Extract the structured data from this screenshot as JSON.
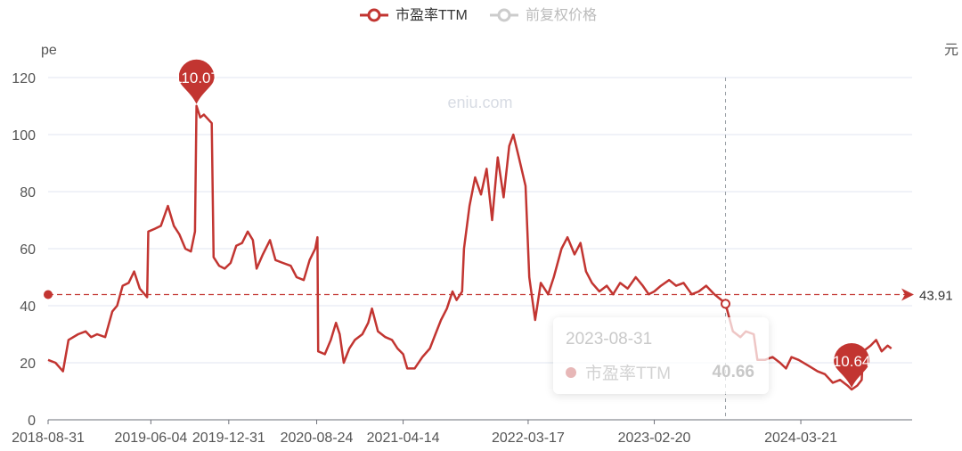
{
  "legend": {
    "pe_label": "市盈率TTM",
    "price_label": "前复权价格"
  },
  "axes": {
    "y_left_unit": "pe",
    "y_right_unit": "元"
  },
  "watermark": "eniu.com",
  "tooltip": {
    "date": "2023-08-31",
    "series": "市盈率TTM",
    "value": "40.66"
  },
  "colors": {
    "pe_series": "#c23531",
    "price_series_inactive": "#cccccc",
    "grid": "#e0e6f1",
    "crosshair": "#9aa0a6"
  },
  "chart_data": {
    "type": "line",
    "x_tick_labels": [
      "2018-08-31",
      "2019-06-04",
      "2019-12-31",
      "2020-08-24",
      "2021-04-14",
      "2022-03-17",
      "2023-02-20",
      "2024-03-21"
    ],
    "y_ticks": [
      0,
      20,
      40,
      60,
      80,
      100,
      120
    ],
    "ylim": [
      0,
      120
    ],
    "xlim": [
      "2018-08-31",
      "2025-01-15"
    ],
    "grid": true,
    "legend_position": "top-center",
    "series": [
      {
        "name": "市盈率TTM",
        "points": [
          [
            "2018-08-31",
            21
          ],
          [
            "2018-09-20",
            20
          ],
          [
            "2018-10-10",
            17
          ],
          [
            "2018-10-25",
            28
          ],
          [
            "2018-11-20",
            30
          ],
          [
            "2018-12-10",
            31
          ],
          [
            "2018-12-25",
            29
          ],
          [
            "2019-01-10",
            30
          ],
          [
            "2019-02-01",
            29
          ],
          [
            "2019-02-20",
            38
          ],
          [
            "2019-03-05",
            40
          ],
          [
            "2019-03-20",
            47
          ],
          [
            "2019-04-05",
            48
          ],
          [
            "2019-04-20",
            52
          ],
          [
            "2019-05-05",
            46
          ],
          [
            "2019-05-25",
            43
          ],
          [
            "2019-05-28",
            66
          ],
          [
            "2019-06-15",
            67
          ],
          [
            "2019-07-01",
            68
          ],
          [
            "2019-07-20",
            75
          ],
          [
            "2019-08-05",
            68
          ],
          [
            "2019-08-20",
            65
          ],
          [
            "2019-09-05",
            60
          ],
          [
            "2019-09-20",
            59
          ],
          [
            "2019-10-01",
            66
          ],
          [
            "2019-10-05",
            110.07
          ],
          [
            "2019-10-15",
            106
          ],
          [
            "2019-10-25",
            107
          ],
          [
            "2019-11-15",
            104
          ],
          [
            "2019-11-20",
            57
          ],
          [
            "2019-12-05",
            54
          ],
          [
            "2019-12-20",
            53
          ],
          [
            "2020-01-05",
            55
          ],
          [
            "2020-01-20",
            61
          ],
          [
            "2020-02-05",
            62
          ],
          [
            "2020-02-20",
            66
          ],
          [
            "2020-03-05",
            63
          ],
          [
            "2020-03-15",
            53
          ],
          [
            "2020-04-01",
            58
          ],
          [
            "2020-04-20",
            63
          ],
          [
            "2020-05-05",
            56
          ],
          [
            "2020-05-25",
            55
          ],
          [
            "2020-06-15",
            54
          ],
          [
            "2020-07-01",
            50
          ],
          [
            "2020-07-20",
            49
          ],
          [
            "2020-08-05",
            56
          ],
          [
            "2020-08-20",
            60
          ],
          [
            "2020-08-26",
            64
          ],
          [
            "2020-08-28",
            24
          ],
          [
            "2020-09-15",
            23
          ],
          [
            "2020-10-01",
            28
          ],
          [
            "2020-10-15",
            34
          ],
          [
            "2020-10-25",
            30
          ],
          [
            "2020-11-05",
            20
          ],
          [
            "2020-11-20",
            25
          ],
          [
            "2020-12-05",
            28
          ],
          [
            "2020-12-25",
            30
          ],
          [
            "2021-01-10",
            34
          ],
          [
            "2021-01-20",
            39
          ],
          [
            "2021-02-05",
            31
          ],
          [
            "2021-02-25",
            29
          ],
          [
            "2021-03-15",
            28
          ],
          [
            "2021-03-30",
            25
          ],
          [
            "2021-04-14",
            23
          ],
          [
            "2021-04-25",
            18
          ],
          [
            "2021-05-15",
            18
          ],
          [
            "2021-06-05",
            22
          ],
          [
            "2021-06-25",
            25
          ],
          [
            "2021-07-10",
            30
          ],
          [
            "2021-07-25",
            35
          ],
          [
            "2021-08-10",
            39
          ],
          [
            "2021-08-25",
            45
          ],
          [
            "2021-09-05",
            42
          ],
          [
            "2021-09-20",
            45
          ],
          [
            "2021-09-25",
            60
          ],
          [
            "2021-10-10",
            75
          ],
          [
            "2021-10-25",
            85
          ],
          [
            "2021-11-10",
            79
          ],
          [
            "2021-11-25",
            88
          ],
          [
            "2021-12-10",
            70
          ],
          [
            "2021-12-25",
            92
          ],
          [
            "2022-01-10",
            78
          ],
          [
            "2022-01-25",
            96
          ],
          [
            "2022-02-05",
            100
          ],
          [
            "2022-02-20",
            92
          ],
          [
            "2022-03-10",
            82
          ],
          [
            "2022-03-20",
            50
          ],
          [
            "2022-04-05",
            35
          ],
          [
            "2022-04-20",
            48
          ],
          [
            "2022-05-10",
            44
          ],
          [
            "2022-05-25",
            50
          ],
          [
            "2022-06-15",
            60
          ],
          [
            "2022-07-01",
            64
          ],
          [
            "2022-07-20",
            58
          ],
          [
            "2022-08-05",
            62
          ],
          [
            "2022-08-20",
            52
          ],
          [
            "2022-09-05",
            48
          ],
          [
            "2022-09-25",
            45
          ],
          [
            "2022-10-15",
            47
          ],
          [
            "2022-11-01",
            44
          ],
          [
            "2022-11-20",
            48
          ],
          [
            "2022-12-10",
            46
          ],
          [
            "2023-01-01",
            50
          ],
          [
            "2023-01-20",
            47
          ],
          [
            "2023-02-05",
            44
          ],
          [
            "2023-02-20",
            45
          ],
          [
            "2023-03-10",
            47
          ],
          [
            "2023-04-01",
            49
          ],
          [
            "2023-04-20",
            47
          ],
          [
            "2023-05-10",
            48
          ],
          [
            "2023-06-01",
            44
          ],
          [
            "2023-06-20",
            45
          ],
          [
            "2023-07-10",
            47
          ],
          [
            "2023-08-01",
            44
          ],
          [
            "2023-08-20",
            42
          ],
          [
            "2023-08-31",
            40.66
          ],
          [
            "2023-09-20",
            31
          ],
          [
            "2023-10-10",
            29
          ],
          [
            "2023-10-25",
            31
          ],
          [
            "2023-11-15",
            30
          ],
          [
            "2023-11-25",
            21
          ],
          [
            "2023-12-15",
            21
          ],
          [
            "2024-01-05",
            22
          ],
          [
            "2024-01-25",
            20
          ],
          [
            "2024-02-10",
            18
          ],
          [
            "2024-02-25",
            22
          ],
          [
            "2024-03-15",
            21
          ],
          [
            "2024-04-10",
            19
          ],
          [
            "2024-05-05",
            17
          ],
          [
            "2024-05-25",
            16
          ],
          [
            "2024-06-15",
            13
          ],
          [
            "2024-07-05",
            14
          ],
          [
            "2024-07-25",
            12
          ],
          [
            "2024-08-05",
            10.64
          ],
          [
            "2024-08-20",
            12
          ],
          [
            "2024-09-01",
            14
          ],
          [
            "2024-09-05",
            24
          ],
          [
            "2024-09-25",
            26
          ],
          [
            "2024-10-10",
            28
          ],
          [
            "2024-10-25",
            24
          ],
          [
            "2024-11-10",
            26
          ],
          [
            "2024-11-20",
            25
          ]
        ]
      },
      {
        "name": "前复权价格",
        "points": []
      }
    ],
    "mark_points": [
      {
        "label": "110.07",
        "x": "2019-10-05",
        "y": 110.07,
        "kind": "max"
      },
      {
        "label": "10.64",
        "x": "2024-08-05",
        "y": 10.64,
        "kind": "min"
      }
    ],
    "mark_line": {
      "label": "43.91",
      "y": 43.91,
      "kind": "average"
    },
    "crosshair_x": "2023-08-31"
  }
}
